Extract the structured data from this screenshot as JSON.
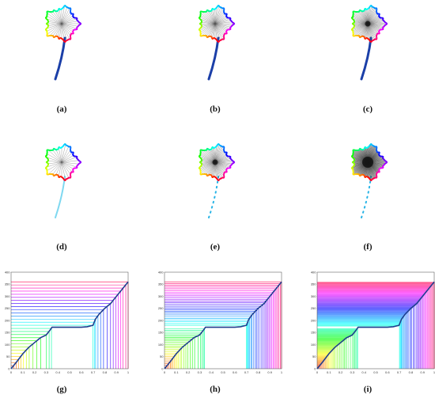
{
  "figure": {
    "panels": [
      {
        "id": "a",
        "caption": "(a)",
        "kind": "leaf",
        "rays": 40,
        "style": "thin",
        "stem": "solid"
      },
      {
        "id": "b",
        "caption": "(b)",
        "kind": "leaf",
        "rays": 60,
        "style": "thin",
        "stem": "solid"
      },
      {
        "id": "c",
        "caption": "(c)",
        "kind": "leaf",
        "rays": 90,
        "style": "dense",
        "stem": "solid"
      },
      {
        "id": "d",
        "caption": "(d)",
        "kind": "leaf",
        "rays": 30,
        "style": "thin",
        "stem": "faint"
      },
      {
        "id": "e",
        "caption": "(e)",
        "kind": "leaf",
        "rays": 80,
        "style": "dense",
        "stem": "dotted"
      },
      {
        "id": "f",
        "caption": "(f)",
        "kind": "leaf",
        "rays": 140,
        "style": "blob",
        "stem": "dotted"
      },
      {
        "id": "g",
        "caption": "(g)",
        "kind": "plot",
        "lines": 28,
        "fill": false
      },
      {
        "id": "h",
        "caption": "(h)",
        "kind": "plot",
        "lines": 50,
        "fill": false
      },
      {
        "id": "i",
        "caption": "(i)",
        "kind": "plot",
        "lines": 90,
        "fill": true
      }
    ]
  },
  "chart_data": [
    {
      "type": "line",
      "panel": "g",
      "x_ticks": [
        "0",
        "0.1",
        "0.2",
        "0.3",
        "0.4",
        "0.5",
        "0.6",
        "0.7",
        "0.8",
        "0.9",
        "1"
      ],
      "y_ticks": [
        "0",
        "50",
        "100",
        "150",
        "200",
        "250",
        "300",
        "350",
        "400"
      ],
      "xlim": [
        0,
        1
      ],
      "ylim": [
        0,
        400
      ],
      "x": [
        0,
        0.05,
        0.1,
        0.15,
        0.2,
        0.25,
        0.3,
        0.33,
        0.35,
        0.4,
        0.5,
        0.6,
        0.65,
        0.7,
        0.72,
        0.75,
        0.8,
        0.85,
        0.9,
        0.95,
        1.0
      ],
      "y": [
        0,
        30,
        62,
        88,
        108,
        128,
        140,
        158,
        172,
        172,
        172,
        172,
        174,
        180,
        205,
        225,
        250,
        270,
        300,
        330,
        360
      ]
    },
    {
      "type": "line",
      "panel": "h",
      "x_ticks": [
        "0",
        "0.1",
        "0.2",
        "0.3",
        "0.4",
        "0.5",
        "0.6",
        "0.7",
        "0.8",
        "0.9",
        "1"
      ],
      "y_ticks": [
        "0",
        "50",
        "100",
        "150",
        "200",
        "250",
        "300",
        "350",
        "400"
      ],
      "xlim": [
        0,
        1
      ],
      "ylim": [
        0,
        400
      ],
      "x": [
        0,
        0.05,
        0.1,
        0.15,
        0.2,
        0.25,
        0.3,
        0.33,
        0.35,
        0.4,
        0.5,
        0.6,
        0.65,
        0.7,
        0.72,
        0.75,
        0.8,
        0.85,
        0.9,
        0.95,
        1.0
      ],
      "y": [
        0,
        30,
        62,
        88,
        108,
        128,
        140,
        158,
        172,
        172,
        172,
        172,
        174,
        180,
        205,
        225,
        250,
        270,
        300,
        330,
        360
      ]
    },
    {
      "type": "line",
      "panel": "i",
      "x_ticks": [
        "0",
        "0.1",
        "0.2",
        "0.3",
        "0.4",
        "0.5",
        "0.6",
        "0.7",
        "0.8",
        "0.9",
        "1"
      ],
      "y_ticks": [
        "0",
        "50",
        "100",
        "150",
        "200",
        "250",
        "300",
        "350",
        "400"
      ],
      "xlim": [
        0,
        1
      ],
      "ylim": [
        0,
        400
      ],
      "x": [
        0,
        0.05,
        0.1,
        0.15,
        0.2,
        0.25,
        0.3,
        0.33,
        0.35,
        0.4,
        0.5,
        0.6,
        0.65,
        0.7,
        0.72,
        0.75,
        0.8,
        0.85,
        0.9,
        0.95,
        1.0
      ],
      "y": [
        0,
        30,
        62,
        88,
        108,
        128,
        140,
        158,
        172,
        172,
        172,
        172,
        174,
        180,
        205,
        225,
        250,
        270,
        300,
        330,
        360
      ]
    }
  ]
}
